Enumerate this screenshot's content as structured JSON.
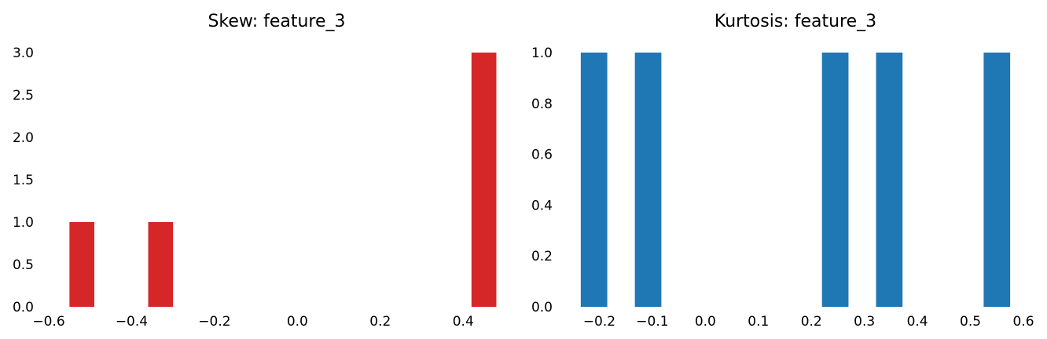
{
  "chart_data": [
    {
      "type": "bar",
      "title": "Skew: feature_3",
      "xlabel": "",
      "ylabel": "",
      "color": "#d62728",
      "xlim": [
        -0.6,
        0.5
      ],
      "ylim": [
        0,
        3.0
      ],
      "xticks": [
        -0.6,
        -0.4,
        -0.2,
        0.0,
        0.2,
        0.4
      ],
      "xtick_labels": [
        "−0.6",
        "−0.4",
        "−0.2",
        "0.0",
        "0.2",
        "0.4"
      ],
      "yticks": [
        0.0,
        0.5,
        1.0,
        1.5,
        2.0,
        2.5,
        3.0
      ],
      "ytick_labels": [
        "0.0",
        "0.5",
        "1.0",
        "1.5",
        "2.0",
        "2.5",
        "3.0"
      ],
      "bars": [
        {
          "x0": -0.55,
          "x1": -0.49,
          "value": 1
        },
        {
          "x0": -0.36,
          "x1": -0.3,
          "value": 1
        },
        {
          "x0": 0.42,
          "x1": 0.48,
          "value": 3
        }
      ],
      "grid": false,
      "legend": "none"
    },
    {
      "type": "bar",
      "title": "Kurtosis: feature_3",
      "xlabel": "",
      "ylabel": "",
      "color": "#1f77b4",
      "xlim": [
        -0.26,
        0.6
      ],
      "ylim": [
        0,
        1.0
      ],
      "xticks": [
        -0.2,
        -0.1,
        0.0,
        0.1,
        0.2,
        0.3,
        0.4,
        0.5,
        0.6
      ],
      "xtick_labels": [
        "−0.2",
        "−0.1",
        "0.0",
        "0.1",
        "0.2",
        "0.3",
        "0.4",
        "0.5",
        "0.6"
      ],
      "yticks": [
        0.0,
        0.2,
        0.4,
        0.6,
        0.8,
        1.0
      ],
      "ytick_labels": [
        "0.0",
        "0.2",
        "0.4",
        "0.6",
        "0.8",
        "1.0"
      ],
      "bars": [
        {
          "x0": -0.235,
          "x1": -0.185,
          "value": 1
        },
        {
          "x0": -0.133,
          "x1": -0.083,
          "value": 1
        },
        {
          "x0": 0.22,
          "x1": 0.27,
          "value": 1
        },
        {
          "x0": 0.322,
          "x1": 0.372,
          "value": 1
        },
        {
          "x0": 0.525,
          "x1": 0.575,
          "value": 1
        }
      ],
      "grid": false,
      "legend": "none"
    }
  ]
}
